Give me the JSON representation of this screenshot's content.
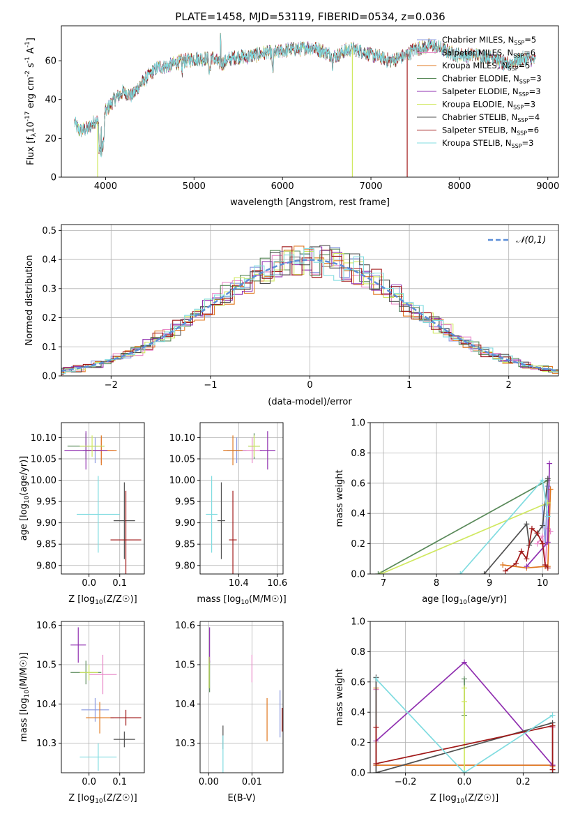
{
  "page": {
    "title": "PLATE=1458, MJD=53119, FIBERID=0534, z=0.036"
  },
  "models": [
    {
      "name": "Chabrier MILES",
      "nssp": "5",
      "color": "#8898e0"
    },
    {
      "name": "Salpeter MILES",
      "nssp": "6",
      "color": "#e888c8"
    },
    {
      "name": "Kroupa MILES",
      "nssp": "5",
      "color": "#e07820"
    },
    {
      "name": "Chabrier ELODIE",
      "nssp": "3",
      "color": "#5a8a5a"
    },
    {
      "name": "Salpeter ELODIE",
      "nssp": "3",
      "color": "#9030b0"
    },
    {
      "name": "Kroupa ELODIE",
      "nssp": "3",
      "color": "#d0e860"
    },
    {
      "name": "Chabrier STELIB",
      "nssp": "4",
      "color": "#505050"
    },
    {
      "name": "Salpeter STELIB",
      "nssp": "6",
      "color": "#a01818"
    },
    {
      "name": "Kroupa STELIB",
      "nssp": "3",
      "color": "#80dce0"
    }
  ],
  "chart_data": [
    {
      "id": "spectrum",
      "type": "line",
      "xlabel": "wavelength [Angstrom, rest frame]",
      "ylabel_parts": [
        "Flux [f",
        "λ",
        "10",
        "-17",
        " erg cm",
        "-2",
        " s",
        "-1",
        " A",
        "-1",
        "]"
      ],
      "xlim": [
        3500,
        9120
      ],
      "ylim": [
        0,
        78
      ],
      "xticks": [
        4000,
        5000,
        6000,
        7000,
        8000,
        9000
      ],
      "yticks": [
        0,
        20,
        40,
        60
      ],
      "continuum": [
        [
          3650,
          28
        ],
        [
          3700,
          24
        ],
        [
          3800,
          25
        ],
        [
          3900,
          30
        ],
        [
          3950,
          22
        ],
        [
          4000,
          34
        ],
        [
          4100,
          40
        ],
        [
          4200,
          44
        ],
        [
          4300,
          42
        ],
        [
          4400,
          48
        ],
        [
          4500,
          53
        ],
        [
          4600,
          57
        ],
        [
          4700,
          57
        ],
        [
          4800,
          59
        ],
        [
          4900,
          60
        ],
        [
          5000,
          61
        ],
        [
          5100,
          61
        ],
        [
          5200,
          62
        ],
        [
          5300,
          58
        ],
        [
          5400,
          61
        ],
        [
          5500,
          62
        ],
        [
          5600,
          62
        ],
        [
          5700,
          63
        ],
        [
          5800,
          64
        ],
        [
          5900,
          64
        ],
        [
          6000,
          65
        ],
        [
          6100,
          66
        ],
        [
          6200,
          66
        ],
        [
          6300,
          67
        ],
        [
          6400,
          66
        ],
        [
          6500,
          64
        ],
        [
          6600,
          62
        ],
        [
          6700,
          65
        ],
        [
          6800,
          66
        ],
        [
          6900,
          65
        ],
        [
          7000,
          63
        ],
        [
          7100,
          62
        ],
        [
          7200,
          60
        ],
        [
          7300,
          61
        ],
        [
          7400,
          63
        ],
        [
          7500,
          66
        ],
        [
          7600,
          67
        ],
        [
          7700,
          68
        ],
        [
          7800,
          66
        ],
        [
          7900,
          64
        ],
        [
          8000,
          63
        ],
        [
          8100,
          63
        ],
        [
          8200,
          63
        ],
        [
          8300,
          62
        ],
        [
          8400,
          62
        ],
        [
          8500,
          58
        ],
        [
          8600,
          59
        ],
        [
          8700,
          61
        ],
        [
          8800,
          61
        ],
        [
          8860,
          60
        ]
      ],
      "dropouts": [
        {
          "model": "Kroupa ELODIE",
          "x": 3910
        },
        {
          "model": "Kroupa ELODIE",
          "x": 6790
        },
        {
          "model": "Salpeter STELIB",
          "x": 7410
        }
      ],
      "legend": "upper right"
    },
    {
      "id": "residuals",
      "type": "histogram",
      "xlabel": "(data-model)/error",
      "ylabel": "Normed distribution",
      "xlim": [
        -2.5,
        2.5
      ],
      "ylim": [
        0,
        0.52
      ],
      "xticks": [
        -2,
        -1,
        0,
        1,
        2
      ],
      "yticks": [
        0.0,
        0.1,
        0.2,
        0.3,
        0.4,
        0.5
      ],
      "bin_width": 0.1,
      "reference": {
        "label": "𝒩(0,1)",
        "color": "#5b8ed8",
        "mu": 0,
        "sigma": 1
      },
      "legend": "upper right"
    },
    {
      "id": "age-vs-Z",
      "type": "errorbar",
      "xlabel": "Z [log10(Z/Z☉)]",
      "ylabel": "age [log10(age/yr)]",
      "xlim": [
        -0.09,
        0.18
      ],
      "ylim": [
        9.78,
        10.135
      ],
      "xticks": [
        0.0,
        0.1
      ],
      "yticks": [
        9.8,
        9.85,
        9.9,
        9.95,
        10.0,
        10.05,
        10.1
      ],
      "points": [
        {
          "model": "Chabrier MILES",
          "x": 0.02,
          "xerr": 0.04,
          "y": 10.07,
          "yerr": 0.03
        },
        {
          "model": "Salpeter MILES",
          "x": 0.04,
          "xerr": 0.04,
          "y": 10.07,
          "yerr": 0.03
        },
        {
          "model": "Kroupa MILES",
          "x": 0.04,
          "xerr": 0.05,
          "y": 10.07,
          "yerr": 0.035
        },
        {
          "model": "Chabrier ELODIE",
          "x": -0.01,
          "xerr": 0.06,
          "y": 10.08,
          "yerr": 0.03
        },
        {
          "model": "Salpeter ELODIE",
          "x": -0.01,
          "xerr": 0.07,
          "y": 10.07,
          "yerr": 0.045
        },
        {
          "model": "Kroupa ELODIE",
          "x": 0.01,
          "xerr": 0.04,
          "y": 10.08,
          "yerr": 0.025
        },
        {
          "model": "Chabrier STELIB",
          "x": 0.115,
          "xerr": 0.035,
          "y": 9.905,
          "yerr": 0.09
        },
        {
          "model": "Salpeter STELIB",
          "x": 0.12,
          "xerr": 0.05,
          "y": 9.86,
          "yerr": 0.115
        },
        {
          "model": "Kroupa STELIB",
          "x": 0.03,
          "xerr": 0.07,
          "y": 9.92,
          "yerr": 0.09
        }
      ]
    },
    {
      "id": "age-vs-mass",
      "type": "errorbar",
      "xlabel": "mass [log10(M/M☉)]",
      "ylabel": "",
      "xlim": [
        10.2,
        10.63
      ],
      "ylim": [
        9.78,
        10.135
      ],
      "xticks": [
        10.4,
        10.6
      ],
      "yticks": [
        9.8,
        9.85,
        9.9,
        9.95,
        10.0,
        10.05,
        10.1
      ],
      "points": [
        {
          "model": "Chabrier MILES",
          "x": 10.39,
          "xerr": 0.05,
          "y": 10.07,
          "yerr": 0.03
        },
        {
          "model": "Salpeter MILES",
          "x": 10.47,
          "xerr": 0.05,
          "y": 10.07,
          "yerr": 0.03
        },
        {
          "model": "Kroupa MILES",
          "x": 10.37,
          "xerr": 0.05,
          "y": 10.07,
          "yerr": 0.035
        },
        {
          "model": "Chabrier ELODIE",
          "x": 10.48,
          "xerr": 0.03,
          "y": 10.08,
          "yerr": 0.03
        },
        {
          "model": "Salpeter ELODIE",
          "x": 10.55,
          "xerr": 0.04,
          "y": 10.07,
          "yerr": 0.045
        },
        {
          "model": "Kroupa ELODIE",
          "x": 10.48,
          "xerr": 0.03,
          "y": 10.08,
          "yerr": 0.025
        },
        {
          "model": "Chabrier STELIB",
          "x": 10.31,
          "xerr": 0.02,
          "y": 9.905,
          "yerr": 0.09
        },
        {
          "model": "Salpeter STELIB",
          "x": 10.37,
          "xerr": 0.02,
          "y": 9.86,
          "yerr": 0.115
        },
        {
          "model": "Kroupa STELIB",
          "x": 10.26,
          "xerr": 0.03,
          "y": 9.92,
          "yerr": 0.09
        }
      ]
    },
    {
      "id": "weight-vs-age",
      "type": "line",
      "xlabel": "age [log10(age/yr)]",
      "ylabel": "mass weight",
      "xlim": [
        6.75,
        10.3
      ],
      "ylim": [
        0,
        1.0
      ],
      "xticks": [
        7,
        8,
        9,
        10
      ],
      "yticks": [
        0.0,
        0.2,
        0.4,
        0.6,
        0.8,
        1.0
      ],
      "series": [
        {
          "model": "Chabrier MILES",
          "x": [
            10.0,
            10.05,
            10.1
          ],
          "y": [
            0.45,
            0.2,
            0.58
          ]
        },
        {
          "model": "Salpeter MILES",
          "x": [
            9.9,
            10.0,
            10.05,
            10.1,
            10.15
          ],
          "y": [
            0.2,
            0.25,
            0.05,
            0.3,
            0.28
          ]
        },
        {
          "model": "Kroupa MILES",
          "x": [
            9.25,
            9.7,
            10.05,
            10.1,
            10.15
          ],
          "y": [
            0.06,
            0.04,
            0.05,
            0.05,
            0.56
          ]
        },
        {
          "model": "Chabrier ELODIE",
          "x": [
            6.9,
            10.1
          ],
          "y": [
            0.0,
            0.62
          ]
        },
        {
          "model": "Salpeter ELODIE",
          "x": [
            9.7,
            10.1,
            10.13
          ],
          "y": [
            0.05,
            0.21,
            0.73
          ]
        },
        {
          "model": "Kroupa ELODIE",
          "x": [
            6.95,
            10.1
          ],
          "y": [
            0.0,
            0.47
          ]
        },
        {
          "model": "Chabrier STELIB",
          "x": [
            8.9,
            9.7,
            9.75,
            10.0,
            10.1
          ],
          "y": [
            0.0,
            0.33,
            0.19,
            0.32,
            0.63
          ]
        },
        {
          "model": "Salpeter STELIB",
          "x": [
            9.3,
            9.5,
            9.6,
            9.7,
            9.8,
            9.9,
            10.0,
            10.05,
            10.1
          ],
          "y": [
            0.02,
            0.07,
            0.15,
            0.1,
            0.3,
            0.27,
            0.2,
            0.06,
            0.04
          ]
        },
        {
          "model": "Kroupa STELIB",
          "x": [
            8.45,
            10.0,
            10.1
          ],
          "y": [
            0.0,
            0.62,
            0.38
          ]
        }
      ]
    },
    {
      "id": "mass-vs-Z",
      "type": "errorbar",
      "xlabel": "Z [log10(Z/Z☉)]",
      "ylabel": "mass [log10(M/M☉)]",
      "xlim": [
        -0.09,
        0.18
      ],
      "ylim": [
        10.225,
        10.61
      ],
      "xticks": [
        0.0,
        0.1
      ],
      "yticks": [
        10.3,
        10.4,
        10.5,
        10.6
      ],
      "points": [
        {
          "model": "Chabrier MILES",
          "x": 0.02,
          "xerr": 0.045,
          "y": 10.385,
          "yerr": 0.03
        },
        {
          "model": "Salpeter MILES",
          "x": 0.045,
          "xerr": 0.045,
          "y": 10.475,
          "yerr": 0.05
        },
        {
          "model": "Kroupa MILES",
          "x": 0.035,
          "xerr": 0.045,
          "y": 10.365,
          "yerr": 0.04
        },
        {
          "model": "Chabrier ELODIE",
          "x": -0.01,
          "xerr": 0.05,
          "y": 10.48,
          "yerr": 0.03
        },
        {
          "model": "Salpeter ELODIE",
          "x": -0.035,
          "xerr": 0.025,
          "y": 10.55,
          "yerr": 0.045
        },
        {
          "model": "Kroupa ELODIE",
          "x": 0.0,
          "xerr": 0.03,
          "y": 10.48,
          "yerr": 0.02
        },
        {
          "model": "Chabrier STELIB",
          "x": 0.115,
          "xerr": 0.035,
          "y": 10.31,
          "yerr": 0.02
        },
        {
          "model": "Salpeter STELIB",
          "x": 0.12,
          "xerr": 0.05,
          "y": 10.365,
          "yerr": 0.02
        },
        {
          "model": "Kroupa STELIB",
          "x": 0.03,
          "xerr": 0.06,
          "y": 10.265,
          "yerr": 0.035
        }
      ]
    },
    {
      "id": "mass-vs-ebv",
      "type": "errorbar",
      "xlabel": "E(B-V)",
      "ylabel": "",
      "xlim": [
        -0.002,
        0.0172
      ],
      "ylim": [
        10.225,
        10.61
      ],
      "xticks": [
        0.0,
        0.01
      ],
      "yticks": [
        10.3,
        10.4,
        10.5,
        10.6
      ],
      "points": [
        {
          "model": "Chabrier MILES",
          "x": 0.0165,
          "xerr": 0,
          "y": 10.375,
          "yerr": 0.06
        },
        {
          "model": "Salpeter MILES",
          "x": 0.01,
          "xerr": 0,
          "y": 10.49,
          "yerr": 0.035
        },
        {
          "model": "Kroupa MILES",
          "x": 0.0135,
          "xerr": 0,
          "y": 10.36,
          "yerr": 0.055
        },
        {
          "model": "Chabrier ELODIE",
          "x": 0.0002,
          "xerr": 0,
          "y": 10.47,
          "yerr": 0.04
        },
        {
          "model": "Salpeter ELODIE",
          "x": 0.0002,
          "xerr": 0,
          "y": 10.55,
          "yerr": 0.045
        },
        {
          "model": "Kroupa ELODIE",
          "x": 0.0001,
          "xerr": 0,
          "y": 10.48,
          "yerr": 0.04
        },
        {
          "model": "Chabrier STELIB",
          "x": 0.0033,
          "xerr": 0,
          "y": 10.315,
          "yerr": 0.03
        },
        {
          "model": "Salpeter STELIB",
          "x": 0.017,
          "xerr": 0,
          "y": 10.36,
          "yerr": 0.03
        },
        {
          "model": "Kroupa STELIB",
          "x": 0.0033,
          "xerr": 0,
          "y": 10.27,
          "yerr": 0.05
        }
      ]
    },
    {
      "id": "weight-vs-Z",
      "type": "line",
      "xlabel": "Z [log10(Z/Z☉)]",
      "ylabel": "mass weight",
      "xlim": [
        -0.32,
        0.32
      ],
      "ylim": [
        0,
        1.0
      ],
      "xticks": [
        -0.2,
        0.0,
        0.2
      ],
      "yticks": [
        0.0,
        0.2,
        0.4,
        0.6,
        0.8,
        1.0
      ],
      "series": [
        {
          "model": "Chabrier MILES",
          "x": [
            -0.3,
            0.0,
            0.3
          ],
          "y": [
            0.05,
            0.05,
            0.05
          ]
        },
        {
          "model": "Salpeter MILES",
          "x": [
            -0.3,
            -0.3,
            0.3,
            0.3
          ],
          "y": [
            0.55,
            0.05,
            0.05,
            0.3
          ]
        },
        {
          "model": "Kroupa MILES",
          "x": [
            -0.3,
            -0.3,
            0.3,
            0.3
          ],
          "y": [
            0.56,
            0.05,
            0.05,
            0.04
          ]
        },
        {
          "model": "Chabrier ELODIE",
          "x": [
            0.0,
            0.0
          ],
          "y": [
            0.62,
            0.38
          ]
        },
        {
          "model": "Salpeter ELODIE",
          "x": [
            -0.3,
            0.0,
            0.3
          ],
          "y": [
            0.21,
            0.73,
            0.05
          ]
        },
        {
          "model": "Kroupa ELODIE",
          "x": [
            0.0,
            0.0,
            0.0
          ],
          "y": [
            0.0,
            0.47,
            0.56
          ]
        },
        {
          "model": "Chabrier STELIB",
          "x": [
            -0.3,
            -0.3,
            0.3,
            0.3
          ],
          "y": [
            0.63,
            0.0,
            0.33,
            0.0
          ]
        },
        {
          "model": "Salpeter STELIB",
          "x": [
            -0.3,
            -0.3,
            0.3,
            0.3
          ],
          "y": [
            0.3,
            0.06,
            0.31,
            0.02
          ]
        },
        {
          "model": "Kroupa STELIB",
          "x": [
            -0.3,
            0.0,
            0.3
          ],
          "y": [
            0.62,
            0.0,
            0.38
          ]
        }
      ]
    }
  ]
}
